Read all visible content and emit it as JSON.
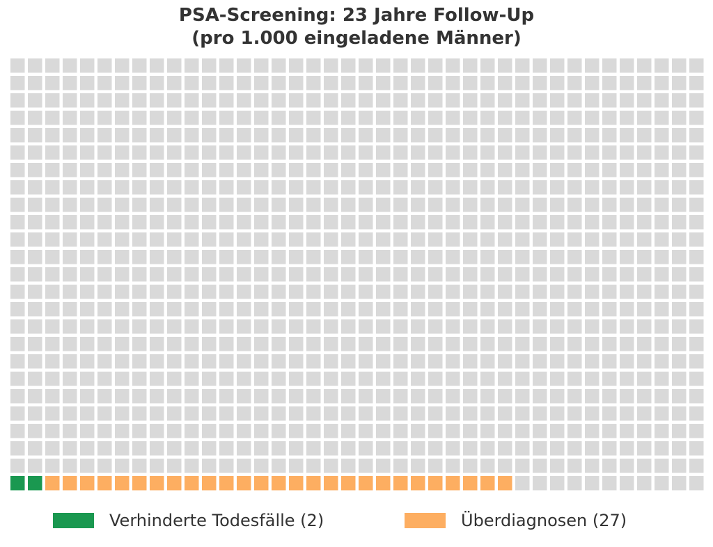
{
  "chart_data": {
    "type": "waffle",
    "title_lines": [
      "PSA-Screening: 23 Jahre Follow-Up",
      "(pro 1.000 eingeladene Männer)"
    ],
    "total": 1000,
    "grid": {
      "columns": 40,
      "rows": 25
    },
    "fill_order": "bottom-left, row by row",
    "series": [
      {
        "name": "Verhinderte Todesfälle (2)",
        "value": 2,
        "color": "#1a9850"
      },
      {
        "name": "Überdiagnosen (27)",
        "value": 27,
        "color": "#fdae61"
      }
    ],
    "remainder_color": "#d9d9d9",
    "legend_position": "bottom"
  }
}
